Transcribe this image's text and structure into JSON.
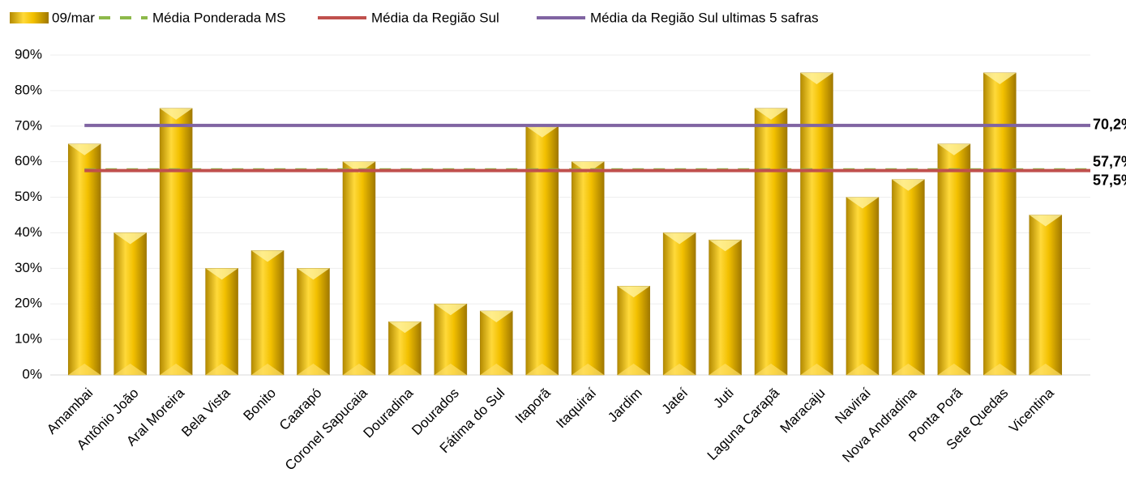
{
  "chart_data": {
    "type": "bar",
    "categories": [
      "Amambai",
      "Antônio João",
      "Aral Moreira",
      "Bela Vista",
      "Bonito",
      "Caarapó",
      "Coronel Sapucaia",
      "Douradina",
      "Dourados",
      "Fátima do Sul",
      "Itaporã",
      "Itaquiraí",
      "Jardim",
      "Jateí",
      "Juti",
      "Laguna Carapã",
      "Maracaju",
      "Naviraí",
      "Nova Andradina",
      "Ponta Porã",
      "Sete Quedas",
      "Vicentina"
    ],
    "series": [
      {
        "name": "09/mar",
        "type": "bar",
        "color": "#f2c000",
        "values": [
          65,
          40,
          75,
          30,
          35,
          30,
          60,
          15,
          20,
          18,
          70,
          60,
          25,
          40,
          38,
          75,
          85,
          50,
          55,
          65,
          85,
          45
        ]
      },
      {
        "name": "Média Ponderada MS",
        "type": "hline",
        "color": "#8db94a",
        "dashed": true,
        "value": 57.7,
        "value_label": "57,7%"
      },
      {
        "name": "Média da Região Sul",
        "type": "hline",
        "color": "#c0504d",
        "dashed": false,
        "value": 57.5,
        "value_label": "57,5%"
      },
      {
        "name": "Média da Região Sul ultimas 5 safras",
        "type": "hline",
        "color": "#8064a2",
        "dashed": false,
        "value": 70.2,
        "value_label": "70,2%"
      }
    ],
    "ylim": [
      0,
      90
    ],
    "yticks": [
      {
        "value": 0,
        "label": "0%"
      },
      {
        "value": 10,
        "label": "10%"
      },
      {
        "value": 20,
        "label": "20%"
      },
      {
        "value": 30,
        "label": "30%"
      },
      {
        "value": 40,
        "label": "40%"
      },
      {
        "value": 50,
        "label": "50%"
      },
      {
        "value": 60,
        "label": "60%"
      },
      {
        "value": 70,
        "label": "70%"
      },
      {
        "value": 80,
        "label": "80%"
      },
      {
        "value": 90,
        "label": "90%"
      }
    ],
    "grid": true
  }
}
